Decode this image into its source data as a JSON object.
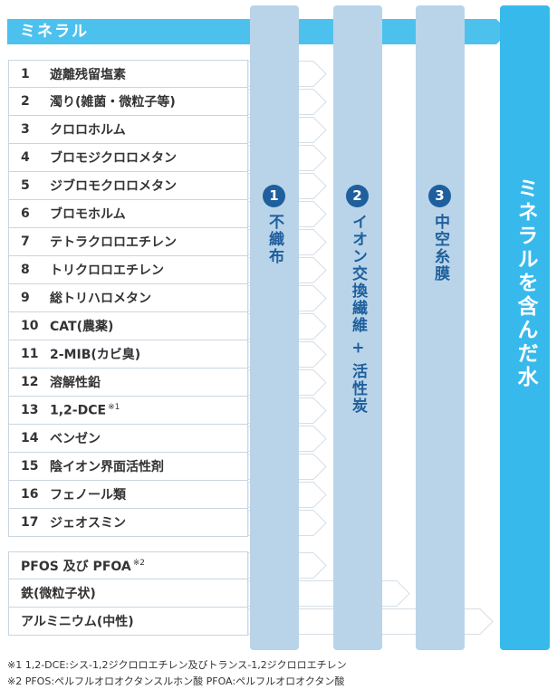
{
  "header": {
    "label": "ミネラル"
  },
  "items": [
    {
      "num": "1",
      "name": "遊離残留塩素"
    },
    {
      "num": "2",
      "name": "濁り(雑菌・微粒子等)"
    },
    {
      "num": "3",
      "name": "クロロホルム"
    },
    {
      "num": "4",
      "name": "ブロモジクロロメタン"
    },
    {
      "num": "5",
      "name": "ジブロモクロロメタン"
    },
    {
      "num": "6",
      "name": "ブロモホルム"
    },
    {
      "num": "7",
      "name": "テトラクロロエチレン"
    },
    {
      "num": "8",
      "name": "トリクロロエチレン"
    },
    {
      "num": "9",
      "name": "総トリハロメタン"
    },
    {
      "num": "10",
      "name": "CAT(農薬)"
    },
    {
      "num": "11",
      "name": "2-MIB(カビ臭)"
    },
    {
      "num": "12",
      "name": "溶解性鉛"
    },
    {
      "num": "13",
      "name": "1,2-DCE",
      "note": "※1"
    },
    {
      "num": "14",
      "name": "ベンゼン"
    },
    {
      "num": "15",
      "name": "陰イオン界面活性剤"
    },
    {
      "num": "16",
      "name": "フェノール類"
    },
    {
      "num": "17",
      "name": "ジェオスミン"
    }
  ],
  "extra_items": [
    {
      "name": "PFOS 及び PFOA",
      "note": "※2"
    },
    {
      "name": "鉄(微粒子状)"
    },
    {
      "name": "アルミニウム(中性)"
    }
  ],
  "filters": [
    {
      "num": "1",
      "label": "不織布"
    },
    {
      "num": "2",
      "label": "イオン交換繊維 + 活性炭"
    },
    {
      "num": "3",
      "label": "中空糸膜"
    }
  ],
  "result": {
    "label": "ミネラルを含んだ水"
  },
  "footnotes": [
    "※1 1,2-DCE:シス-1,2ジクロロエチレン及びトランス-1,2ジクロロエチレン",
    "※2 PFOS:ペルフルオロオクタンスルホン酸  PFOA:ペルフルオロオクタン酸"
  ],
  "colors": {
    "accent": "#4dc1ee",
    "filter": "#b9d4e9",
    "filter_text": "#1f5f9d",
    "result": "#38b9ec"
  }
}
